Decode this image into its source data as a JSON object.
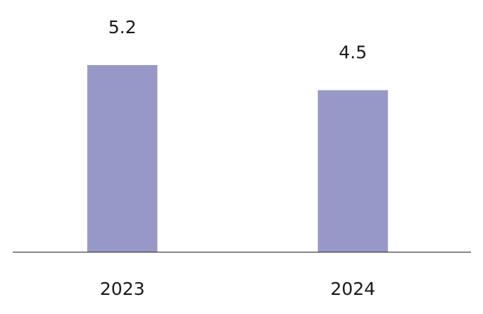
{
  "chart_data": {
    "type": "bar",
    "categories": [
      "2023",
      "2024"
    ],
    "values": [
      5.2,
      4.5
    ],
    "color": "#9898c8"
  }
}
